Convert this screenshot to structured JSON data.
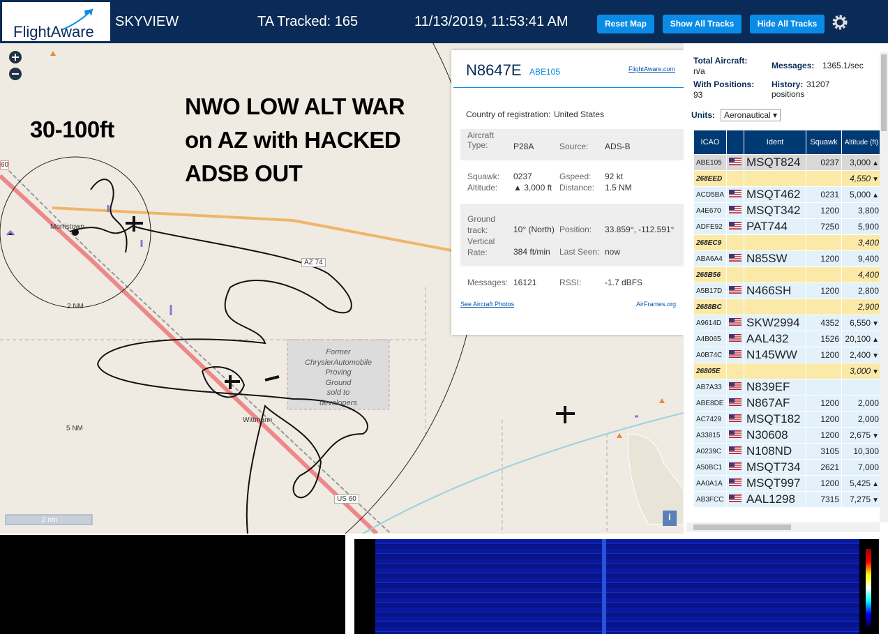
{
  "header": {
    "logo": "FlightAware",
    "app": "SKYVIEW",
    "tracked": "TA Tracked: 165",
    "datetime": "11/13/2019, 11:53:41 AM",
    "buttons": [
      "Reset Map",
      "Show All Tracks",
      "Hide All Tracks"
    ]
  },
  "map": {
    "altitude_note": "30-100ft",
    "annotation": [
      "NWO LOW ALT WAR",
      "on AZ with HACKED",
      "ADSB OUT"
    ],
    "places": [
      "Morristown",
      "Wittmann"
    ],
    "roads": [
      "60",
      "AZ 74",
      "US 60"
    ],
    "rings": [
      "2 NM",
      "5 NM"
    ],
    "scale": "2 nm",
    "landmark": [
      "Former",
      "ChryslerAutomobile",
      "Proving",
      "Ground",
      "sold to",
      "developers"
    ],
    "info_button": "i"
  },
  "popup": {
    "registration": "N8647E",
    "hex": "ABE105",
    "link": "FlightAware.com",
    "country_label": "Country of registration:",
    "country": "United States",
    "type_label": "Aircraft Type:",
    "type": "P28A",
    "source_label": "Source:",
    "source": "ADS-B",
    "squawk_label": "Squawk:",
    "squawk": "0237",
    "gspeed_label": "Gspeed:",
    "gspeed": "92 kt",
    "altitude_label": "Altitude:",
    "altitude": "▲ 3,000 ft",
    "distance_label": "Distance:",
    "distance": "1.5 NM",
    "track_label": "Ground track:",
    "track": "10° (North)",
    "position_label": "Position:",
    "position": "33.859°, -112.591°",
    "vrate_label": "Vertical Rate:",
    "vrate": "384 ft/min",
    "seen_label": "Last Seen:",
    "seen": "now",
    "messages_label": "Messages:",
    "messages": "16121",
    "rssi_label": "RSSI:",
    "rssi": "-1.7 dBFS",
    "photos_link": "See Aircraft Photos",
    "airframes_link": "AirFrames.org"
  },
  "sidebar": {
    "total_label": "Total Aircraft:",
    "total": "n/a",
    "messages_label": "Messages:",
    "messages": "1365.1/sec",
    "positions_label": "With Positions:",
    "positions": "93",
    "history_label": "History:",
    "history": "31207 positions",
    "units_label": "Units:",
    "units": "Aeronautical"
  },
  "table": {
    "columns": [
      "ICAO",
      "Ident",
      "Squawk",
      "Altitude (ft)"
    ],
    "rows": [
      {
        "icao": "ABE105",
        "ident": "MSQT824",
        "squawk": "0237",
        "altitude": "3,000",
        "trend": "▲",
        "selected": true
      },
      {
        "icao": "268EED",
        "altitude": "4,550",
        "trend": "▼"
      },
      {
        "icao": "ACD5BA",
        "ident": "MSQT462",
        "squawk": "0231",
        "altitude": "5,000",
        "trend": "▲"
      },
      {
        "icao": "A4E670",
        "ident": "MSQT342",
        "squawk": "1200",
        "altitude": "3,800"
      },
      {
        "icao": "ADFE92",
        "ident": "PAT744",
        "squawk": "7250",
        "altitude": "5,900"
      },
      {
        "icao": "268EC9",
        "altitude": "3,400"
      },
      {
        "icao": "ABA6A4",
        "ident": "N85SW",
        "squawk": "1200",
        "altitude": "9,400"
      },
      {
        "icao": "268B56",
        "altitude": "4,400"
      },
      {
        "icao": "A5B17D",
        "ident": "N466SH",
        "squawk": "1200",
        "altitude": "2,800"
      },
      {
        "icao": "2688BC",
        "altitude": "2,900"
      },
      {
        "icao": "A9614D",
        "ident": "SKW2994",
        "squawk": "4352",
        "altitude": "6,550",
        "trend": "▼"
      },
      {
        "icao": "A4B065",
        "ident": "AAL432",
        "squawk": "1526",
        "altitude": "20,100",
        "trend": "▲"
      },
      {
        "icao": "A0B74C",
        "ident": "N145WW",
        "squawk": "1200",
        "altitude": "2,400",
        "trend": "▼"
      },
      {
        "icao": "26805E",
        "altitude": "3,000",
        "trend": "▼"
      },
      {
        "icao": "AB7A33",
        "ident": "N839EF"
      },
      {
        "icao": "ABE8DE",
        "ident": "N867AF",
        "squawk": "1200",
        "altitude": "2,000"
      },
      {
        "icao": "AC7429",
        "ident": "MSQT182",
        "squawk": "1200",
        "altitude": "2,000"
      },
      {
        "icao": "A33815",
        "ident": "N30608",
        "squawk": "1200",
        "altitude": "2,675",
        "trend": "▼"
      },
      {
        "icao": "A0239C",
        "ident": "N108ND",
        "squawk": "3105",
        "altitude": "10,300"
      },
      {
        "icao": "A50BC1",
        "ident": "MSQT734",
        "squawk": "2621",
        "altitude": "7,000"
      },
      {
        "icao": "AA0A1A",
        "ident": "MSQT997",
        "squawk": "1200",
        "altitude": "5,425",
        "trend": "▲"
      },
      {
        "icao": "AB3FCC",
        "ident": "AAL1298",
        "squawk": "7315",
        "altitude": "7,275",
        "trend": "▼"
      }
    ]
  }
}
